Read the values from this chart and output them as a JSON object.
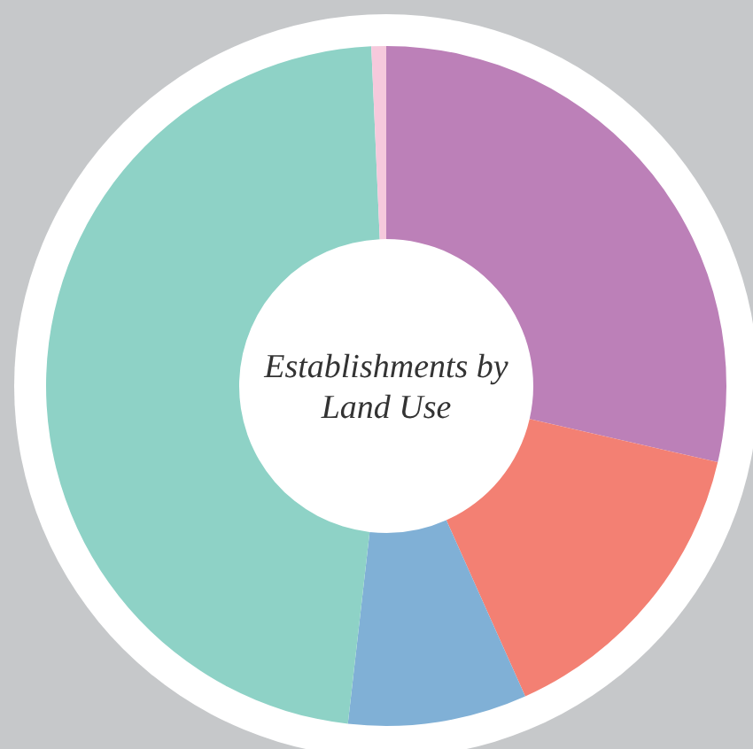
{
  "chart_data": {
    "type": "donut",
    "title": "Establishments by Land Use",
    "categories": [
      null,
      null,
      null,
      null,
      null
    ],
    "values": [
      28.6,
      14.7,
      8.5,
      47.5,
      0.7
    ],
    "colors": [
      "#bc80b8",
      "#f38073",
      "#80b0d6",
      "#8ed2c6",
      "#f6c9dc"
    ]
  }
}
